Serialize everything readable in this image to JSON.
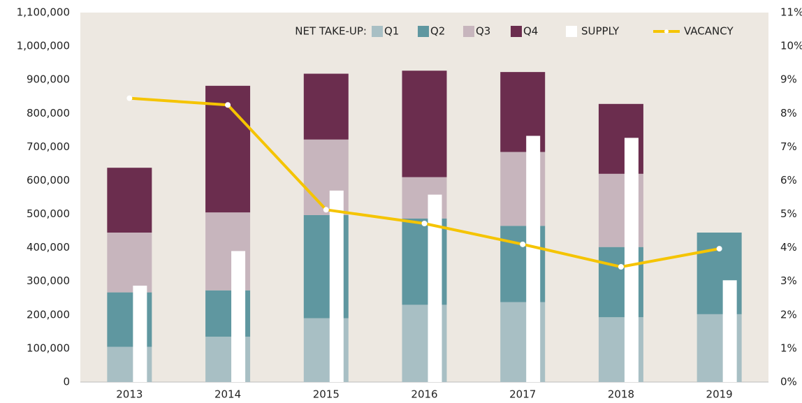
{
  "chart_data": {
    "type": "bar",
    "legend_title": "NET TAKE-UP:",
    "categories": [
      "2013",
      "2014",
      "2015",
      "2016",
      "2017",
      "2018",
      "2019"
    ],
    "series": [
      {
        "name": "Q1",
        "color": "#a8bfc4",
        "stack": "take-up",
        "values": [
          105000,
          135000,
          190000,
          230000,
          238000,
          193000,
          202000
        ]
      },
      {
        "name": "Q2",
        "color": "#5f97a0",
        "stack": "take-up",
        "values": [
          162000,
          138000,
          307000,
          257000,
          227000,
          209000,
          243000
        ]
      },
      {
        "name": "Q3",
        "color": "#c7b5bd",
        "stack": "take-up",
        "values": [
          178000,
          232000,
          225000,
          123000,
          220000,
          218000,
          null
        ]
      },
      {
        "name": "Q4",
        "color": "#6b2d4e",
        "stack": "take-up",
        "values": [
          193000,
          377000,
          196000,
          317000,
          238000,
          208000,
          null
        ]
      },
      {
        "name": "SUPPLY",
        "color": "#ffffff",
        "stack": "supply",
        "values": [
          287000,
          390000,
          570000,
          558000,
          733000,
          727000,
          303000
        ]
      },
      {
        "name": "VACANCY",
        "color": "#f5c400",
        "type": "line",
        "axis": "y2",
        "values": [
          8.45,
          8.25,
          5.13,
          4.72,
          4.1,
          3.43,
          3.97
        ]
      }
    ],
    "ylim": [
      0,
      1100000
    ],
    "yticks": [
      0,
      {
        "value": 100000,
        "label": "100,000"
      },
      {
        "value": 200000,
        "label": "200,000"
      },
      {
        "value": 300000,
        "label": "300,000"
      },
      {
        "value": 400000,
        "label": "400,000"
      },
      {
        "value": 500000,
        "label": "500,000"
      },
      {
        "value": 600000,
        "label": "600,000"
      },
      {
        "value": 700000,
        "label": "700,000"
      },
      {
        "value": 800000,
        "label": "800,000"
      },
      {
        "value": 900000,
        "label": "900,000"
      },
      {
        "value": 1000000,
        "label": "1,000,000"
      },
      {
        "value": 1100000,
        "label": "1,100,000"
      }
    ],
    "y2lim": [
      0,
      11
    ],
    "y2ticks": [
      {
        "value": 0,
        "label": "0%"
      },
      {
        "value": 1,
        "label": "1%"
      },
      {
        "value": 2,
        "label": "2%"
      },
      {
        "value": 3,
        "label": "3%"
      },
      {
        "value": 4,
        "label": "4%"
      },
      {
        "value": 5,
        "label": "5%"
      },
      {
        "value": 6,
        "label": "6%"
      },
      {
        "value": 7,
        "label": "7%"
      },
      {
        "value": 8,
        "label": "8%"
      },
      {
        "value": 9,
        "label": "9%"
      },
      {
        "value": 10,
        "label": "10%"
      },
      {
        "value": 11,
        "label": "11%"
      }
    ],
    "legend_position": "top right",
    "background": "#ede8e1"
  }
}
